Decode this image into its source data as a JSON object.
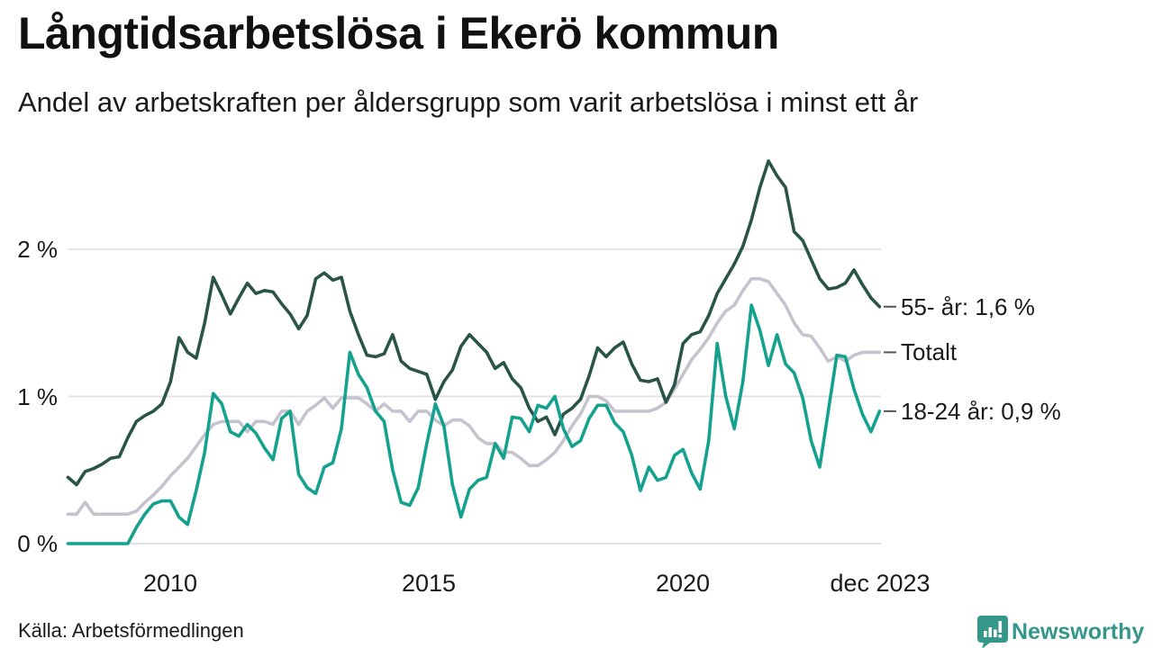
{
  "page": {
    "title": "Långtidsarbetslösa i Ekerö kommun",
    "subtitle": "Andel av arbetskraften per åldersgrupp som varit arbetslösa i minst ett år",
    "source": "Källa: Arbetsförmedlingen",
    "brand": "Newsworthy"
  },
  "colors": {
    "age55": "#2a5447",
    "total": "#c4c3ce",
    "age1824": "#14a28f",
    "grid": "#e3e3e3",
    "annotation_dash": "#555555",
    "text": "#1a1a1a",
    "brand_teal": "#35968a"
  },
  "chart_data": {
    "type": "line",
    "title": "Långtidsarbetslösa i Ekerö kommun",
    "subtitle": "Andel av arbetskraften per åldersgrupp som varit arbetslösa i minst ett år",
    "unit": "% av arbetskraften",
    "x_start_year": 2008,
    "points_per_year": 6,
    "xlim": [
      2008,
      2024
    ],
    "ylim": [
      0,
      2.75
    ],
    "grid": "horizontal-only",
    "legend_position": "right-end-annotations",
    "x_axis": {
      "ticks": [
        {
          "label": "2010",
          "year": 2010
        },
        {
          "label": "2015",
          "year": 2015
        },
        {
          "label": "2020",
          "year": 2020
        },
        {
          "label": "dec 2023",
          "year": 2023.92
        }
      ]
    },
    "y_axis": {
      "ticks": [
        {
          "label": "0 %",
          "value": 0
        },
        {
          "label": "1 %",
          "value": 1
        },
        {
          "label": "2 %",
          "value": 2
        }
      ]
    },
    "series": [
      {
        "name": "Totalt",
        "annotation": "Totalt",
        "color": "#c4c3ce",
        "values": [
          0.2,
          0.2,
          0.28,
          0.2,
          0.2,
          0.2,
          0.2,
          0.2,
          0.22,
          0.28,
          0.33,
          0.39,
          0.46,
          0.52,
          0.58,
          0.66,
          0.74,
          0.81,
          0.83,
          0.83,
          0.83,
          0.76,
          0.83,
          0.83,
          0.81,
          0.9,
          0.9,
          0.81,
          0.9,
          0.94,
          0.99,
          0.92,
          0.99,
          0.99,
          0.99,
          0.95,
          0.9,
          0.95,
          0.9,
          0.9,
          0.83,
          0.9,
          0.9,
          0.84,
          0.8,
          0.84,
          0.84,
          0.8,
          0.72,
          0.68,
          0.68,
          0.62,
          0.62,
          0.58,
          0.53,
          0.53,
          0.57,
          0.62,
          0.7,
          0.8,
          0.88,
          1.0,
          1.0,
          0.97,
          0.9,
          0.9,
          0.9,
          0.9,
          0.9,
          0.92,
          0.96,
          1.05,
          1.15,
          1.25,
          1.32,
          1.4,
          1.5,
          1.58,
          1.62,
          1.72,
          1.8,
          1.8,
          1.78,
          1.7,
          1.62,
          1.5,
          1.42,
          1.41,
          1.33,
          1.24,
          1.27,
          1.24,
          1.28,
          1.3,
          1.3,
          1.3
        ]
      },
      {
        "name": "55- år",
        "annotation": "55- år: 1,6 %",
        "last_value_label": "1,6 %",
        "color": "#2a5447",
        "values": [
          0.45,
          0.4,
          0.49,
          0.51,
          0.54,
          0.58,
          0.59,
          0.72,
          0.83,
          0.87,
          0.9,
          0.95,
          1.1,
          1.4,
          1.3,
          1.26,
          1.5,
          1.81,
          1.69,
          1.56,
          1.67,
          1.77,
          1.7,
          1.72,
          1.71,
          1.63,
          1.56,
          1.46,
          1.55,
          1.8,
          1.84,
          1.79,
          1.81,
          1.58,
          1.42,
          1.28,
          1.27,
          1.29,
          1.42,
          1.24,
          1.19,
          1.17,
          1.15,
          0.98,
          1.1,
          1.18,
          1.34,
          1.42,
          1.36,
          1.3,
          1.19,
          1.23,
          1.12,
          1.06,
          0.92,
          0.83,
          0.86,
          0.74,
          0.88,
          0.92,
          0.98,
          1.14,
          1.33,
          1.27,
          1.33,
          1.37,
          1.22,
          1.11,
          1.1,
          1.12,
          0.96,
          1.08,
          1.36,
          1.42,
          1.44,
          1.55,
          1.7,
          1.8,
          1.9,
          2.02,
          2.2,
          2.42,
          2.6,
          2.5,
          2.42,
          2.12,
          2.06,
          1.93,
          1.8,
          1.73,
          1.74,
          1.77,
          1.86,
          1.76,
          1.67,
          1.61
        ]
      },
      {
        "name": "18-24 år",
        "annotation": "18-24 år: 0,9 %",
        "last_value_label": "0,9 %",
        "color": "#14a28f",
        "values": [
          0.0,
          0.0,
          0.0,
          0.0,
          0.0,
          0.0,
          0.0,
          0.0,
          0.11,
          0.2,
          0.27,
          0.29,
          0.29,
          0.18,
          0.13,
          0.36,
          0.62,
          1.02,
          0.95,
          0.76,
          0.73,
          0.81,
          0.75,
          0.65,
          0.57,
          0.85,
          0.9,
          0.47,
          0.38,
          0.34,
          0.52,
          0.55,
          0.78,
          1.3,
          1.15,
          1.06,
          0.9,
          0.83,
          0.5,
          0.28,
          0.26,
          0.38,
          0.68,
          0.95,
          0.8,
          0.4,
          0.18,
          0.37,
          0.43,
          0.45,
          0.68,
          0.58,
          0.86,
          0.85,
          0.76,
          0.94,
          0.92,
          1.0,
          0.78,
          0.66,
          0.7,
          0.85,
          0.94,
          0.94,
          0.82,
          0.76,
          0.6,
          0.36,
          0.52,
          0.43,
          0.45,
          0.6,
          0.64,
          0.48,
          0.37,
          0.7,
          1.36,
          1.0,
          0.78,
          1.1,
          1.62,
          1.45,
          1.21,
          1.42,
          1.22,
          1.16,
          0.99,
          0.7,
          0.52,
          0.9,
          1.28,
          1.27,
          1.05,
          0.88,
          0.76,
          0.9
        ]
      }
    ]
  }
}
